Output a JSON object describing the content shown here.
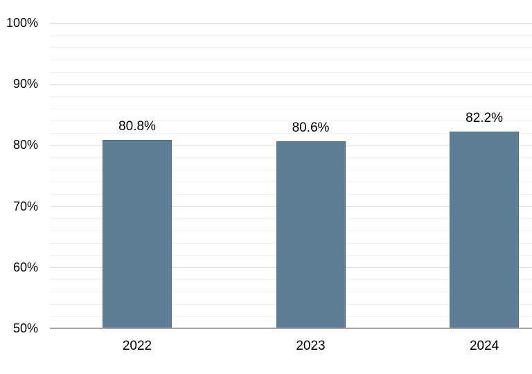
{
  "chart_data": {
    "type": "bar",
    "title": "",
    "xlabel": "",
    "ylabel": "",
    "categories": [
      "2022",
      "2023",
      "2024"
    ],
    "values": [
      80.8,
      80.6,
      82.2
    ],
    "value_labels": [
      "80.8%",
      "80.6%",
      "82.2%"
    ],
    "ylim": [
      50,
      100
    ],
    "y_tick_labels": [
      "50%",
      "60%",
      "70%",
      "80%",
      "90%",
      "100%"
    ],
    "y_major_step": 10,
    "y_minor_step": 2,
    "grid": "horizontal, minor every 2%, major every 10%",
    "legend_position": "none",
    "bar_color": "#5d7e94",
    "bar_border_color": "#4e6f87",
    "major_grid_color": "#d9d9d9",
    "minor_grid_color": "#efefef",
    "axis_line_color": "#a6a6a6",
    "text_color": "#000000"
  }
}
